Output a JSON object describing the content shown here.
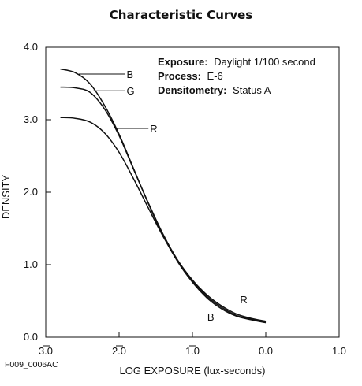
{
  "chart_data": {
    "type": "line",
    "title": "Characteristic Curves",
    "xlabel": "LOG EXPOSURE (lux-seconds)",
    "ylabel": "DENSITY",
    "xlim": [
      -3.0,
      1.0
    ],
    "ylim": [
      0.0,
      4.0
    ],
    "x_ticks": [
      -3.0,
      -2.0,
      -1.0,
      0.0,
      1.0
    ],
    "x_tick_labels": [
      "3.0",
      "2.0",
      "1.0",
      "0.0",
      "1.0"
    ],
    "x_tick_bars": [
      true,
      true,
      true,
      false,
      false
    ],
    "y_ticks": [
      0.0,
      1.0,
      2.0,
      3.0,
      4.0
    ],
    "y_tick_labels": [
      "0.0",
      "1.0",
      "2.0",
      "3.0",
      "4.0"
    ],
    "grid": false,
    "legend": "none",
    "info": [
      {
        "label": "Exposure:",
        "value": "Daylight 1/100 second"
      },
      {
        "label": "Process:",
        "value": "E-6"
      },
      {
        "label": "Densitometry:",
        "value": "Status A"
      }
    ],
    "series": [
      {
        "name": "B",
        "color": "#111111",
        "x": [
          -2.8,
          -2.6,
          -2.4,
          -2.2,
          -2.0,
          -1.8,
          -1.6,
          -1.4,
          -1.2,
          -1.0,
          -0.8,
          -0.6,
          -0.4,
          -0.2,
          0.0
        ],
        "y": [
          3.7,
          3.65,
          3.5,
          3.2,
          2.8,
          2.32,
          1.84,
          1.4,
          1.04,
          0.76,
          0.54,
          0.39,
          0.29,
          0.24,
          0.2
        ]
      },
      {
        "name": "G",
        "color": "#111111",
        "x": [
          -2.8,
          -2.6,
          -2.4,
          -2.2,
          -2.0,
          -1.8,
          -1.6,
          -1.4,
          -1.2,
          -1.0,
          -0.8,
          -0.6,
          -0.4,
          -0.2,
          0.0
        ],
        "y": [
          3.45,
          3.44,
          3.38,
          3.15,
          2.78,
          2.31,
          1.85,
          1.42,
          1.06,
          0.78,
          0.56,
          0.41,
          0.3,
          0.25,
          0.21
        ]
      },
      {
        "name": "R",
        "color": "#111111",
        "x": [
          -2.8,
          -2.6,
          -2.4,
          -2.2,
          -2.0,
          -1.8,
          -1.6,
          -1.4,
          -1.2,
          -1.0,
          -0.8,
          -0.6,
          -0.4,
          -0.2,
          0.0
        ],
        "y": [
          3.03,
          3.02,
          2.97,
          2.82,
          2.55,
          2.18,
          1.78,
          1.39,
          1.06,
          0.79,
          0.58,
          0.43,
          0.32,
          0.26,
          0.22
        ]
      }
    ],
    "curve_labels": [
      {
        "text": "B",
        "x": -2.55,
        "y": 3.63,
        "label_x": -1.92
      },
      {
        "text": "G",
        "x": -2.35,
        "y": 3.4,
        "label_x": -1.92
      },
      {
        "text": "R",
        "x": -2.05,
        "y": 2.88,
        "label_x": -1.6
      },
      {
        "text": "R",
        "x": -0.3,
        "y": 0.52
      },
      {
        "text": "B",
        "x": -0.75,
        "y": 0.28
      }
    ]
  },
  "figure_id": "F009_0006AC"
}
